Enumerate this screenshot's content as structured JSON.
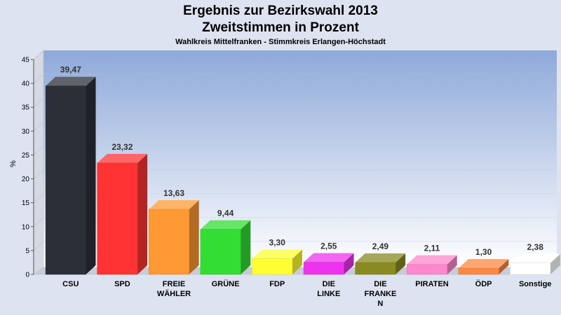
{
  "chart_data": {
    "type": "bar",
    "title": "Ergebnis zur Bezirkswahl 2013",
    "subtitle": "Zweitstimmen in Prozent",
    "caption": "Wahlkreis Mittelfranken - Stimmkreis Erlangen-Höchstadt",
    "xlabel": "",
    "ylabel": "%",
    "ylim": [
      0,
      45
    ],
    "yticks": [
      0,
      5,
      10,
      15,
      20,
      25,
      30,
      35,
      40,
      45
    ],
    "grid": true,
    "categories": [
      [
        "CSU"
      ],
      [
        "SPD"
      ],
      [
        "FREIE",
        "WÄHLER"
      ],
      [
        "GRÜNE"
      ],
      [
        "FDP"
      ],
      [
        "DIE",
        "LINKE"
      ],
      [
        "DIE",
        "FRANKE",
        "N"
      ],
      [
        "PIRATEN"
      ],
      [
        "ÖDP"
      ],
      [
        "Sonstige"
      ]
    ],
    "values": [
      39.47,
      23.32,
      13.63,
      9.44,
      3.3,
      2.55,
      2.49,
      2.11,
      1.3,
      2.38
    ],
    "value_labels": [
      "39,47",
      "23,32",
      "13,63",
      "9,44",
      "3,30",
      "2,55",
      "2,49",
      "2,11",
      "1,30",
      "2,38"
    ],
    "colors": [
      "#2b2f38",
      "#ff3333",
      "#ff9933",
      "#33dd33",
      "#ffff33",
      "#ee33ee",
      "#8a8a22",
      "#ff88cc",
      "#ff8844",
      "#ffffff"
    ]
  }
}
